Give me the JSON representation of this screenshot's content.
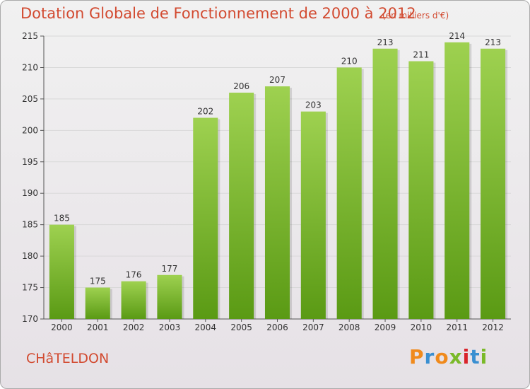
{
  "header": {
    "title": "Dotation Globale de Fonctionnement de 2000 à 2012",
    "units": "(en milliers d'€)"
  },
  "footer": {
    "commune": "CHâTELDON",
    "logo_text": "Proxiti",
    "logo_colors": [
      "#f08a1c",
      "#3a8fd1",
      "#f08a1c",
      "#7ab929",
      "#d9232a",
      "#3a8fd1",
      "#7ab929"
    ]
  },
  "colors": {
    "title": "#d24a30",
    "bar_top": "#9ed150",
    "bar_bottom": "#5a9a14",
    "grid": "#d9d9d9",
    "axis": "#555555"
  },
  "chart_data": {
    "type": "bar",
    "categories": [
      "2000",
      "2001",
      "2002",
      "2003",
      "2004",
      "2005",
      "2006",
      "2007",
      "2008",
      "2009",
      "2010",
      "2011",
      "2012"
    ],
    "values": [
      185,
      175,
      176,
      177,
      202,
      206,
      207,
      203,
      210,
      213,
      211,
      214,
      213
    ],
    "title": "Dotation Globale de Fonctionnement de 2000 à 2012",
    "subtitle": "(en milliers d'€)",
    "ylim": [
      170,
      215
    ],
    "yticks": [
      170,
      175,
      180,
      185,
      190,
      195,
      200,
      205,
      210,
      215
    ],
    "grid": true,
    "data_labels": true
  }
}
